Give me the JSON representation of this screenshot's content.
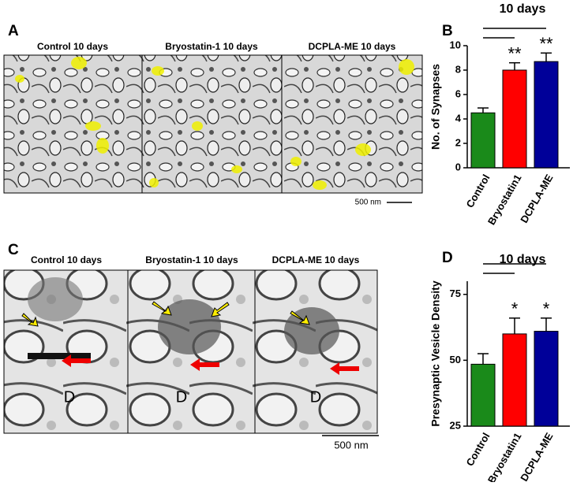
{
  "panels": {
    "A": {
      "label": "A",
      "titles": [
        "Control 10 days",
        "Bryostatin-1 10 days",
        "DCPLA-ME 10 days"
      ],
      "scale": "500 nm"
    },
    "B": {
      "label": "B"
    },
    "C": {
      "label": "C",
      "titles": [
        "Control 10 days",
        "Bryostatin-1 10 days",
        "DCPLA-ME 10 days"
      ],
      "scale": "500 nm",
      "marks": [
        "D",
        "D",
        "D"
      ]
    },
    "D": {
      "label": "D"
    }
  },
  "chart_data": [
    {
      "type": "bar",
      "title": "10 days",
      "y_label": "No. of Synapses",
      "categories": [
        "Control",
        "Bryostatin1",
        "DCPLA-ME"
      ],
      "values": [
        4.5,
        8.0,
        8.7
      ],
      "errors": [
        0.4,
        0.6,
        0.7
      ],
      "colors": [
        "#1a8a1a",
        "#ff0000",
        "#000099"
      ],
      "ylim": [
        0,
        10
      ],
      "yticks": [
        0,
        2,
        4,
        6,
        8,
        10
      ],
      "annotations": [
        {
          "category": "Bryostatin1",
          "text": "**"
        },
        {
          "category": "DCPLA-ME",
          "text": "**"
        }
      ]
    },
    {
      "type": "bar",
      "title": "10 days",
      "y_label": "Presynaptic Vesicle Density",
      "categories": [
        "Control",
        "Bryostatin1",
        "DCPLA-ME"
      ],
      "values": [
        48.5,
        60,
        61
      ],
      "errors": [
        4,
        6,
        5
      ],
      "colors": [
        "#1a8a1a",
        "#ff0000",
        "#000099"
      ],
      "ylim": [
        25,
        80
      ],
      "yticks": [
        25,
        50,
        75
      ],
      "annotations": [
        {
          "category": "Bryostatin1",
          "text": "*"
        },
        {
          "category": "DCPLA-ME",
          "text": "*"
        }
      ]
    }
  ]
}
